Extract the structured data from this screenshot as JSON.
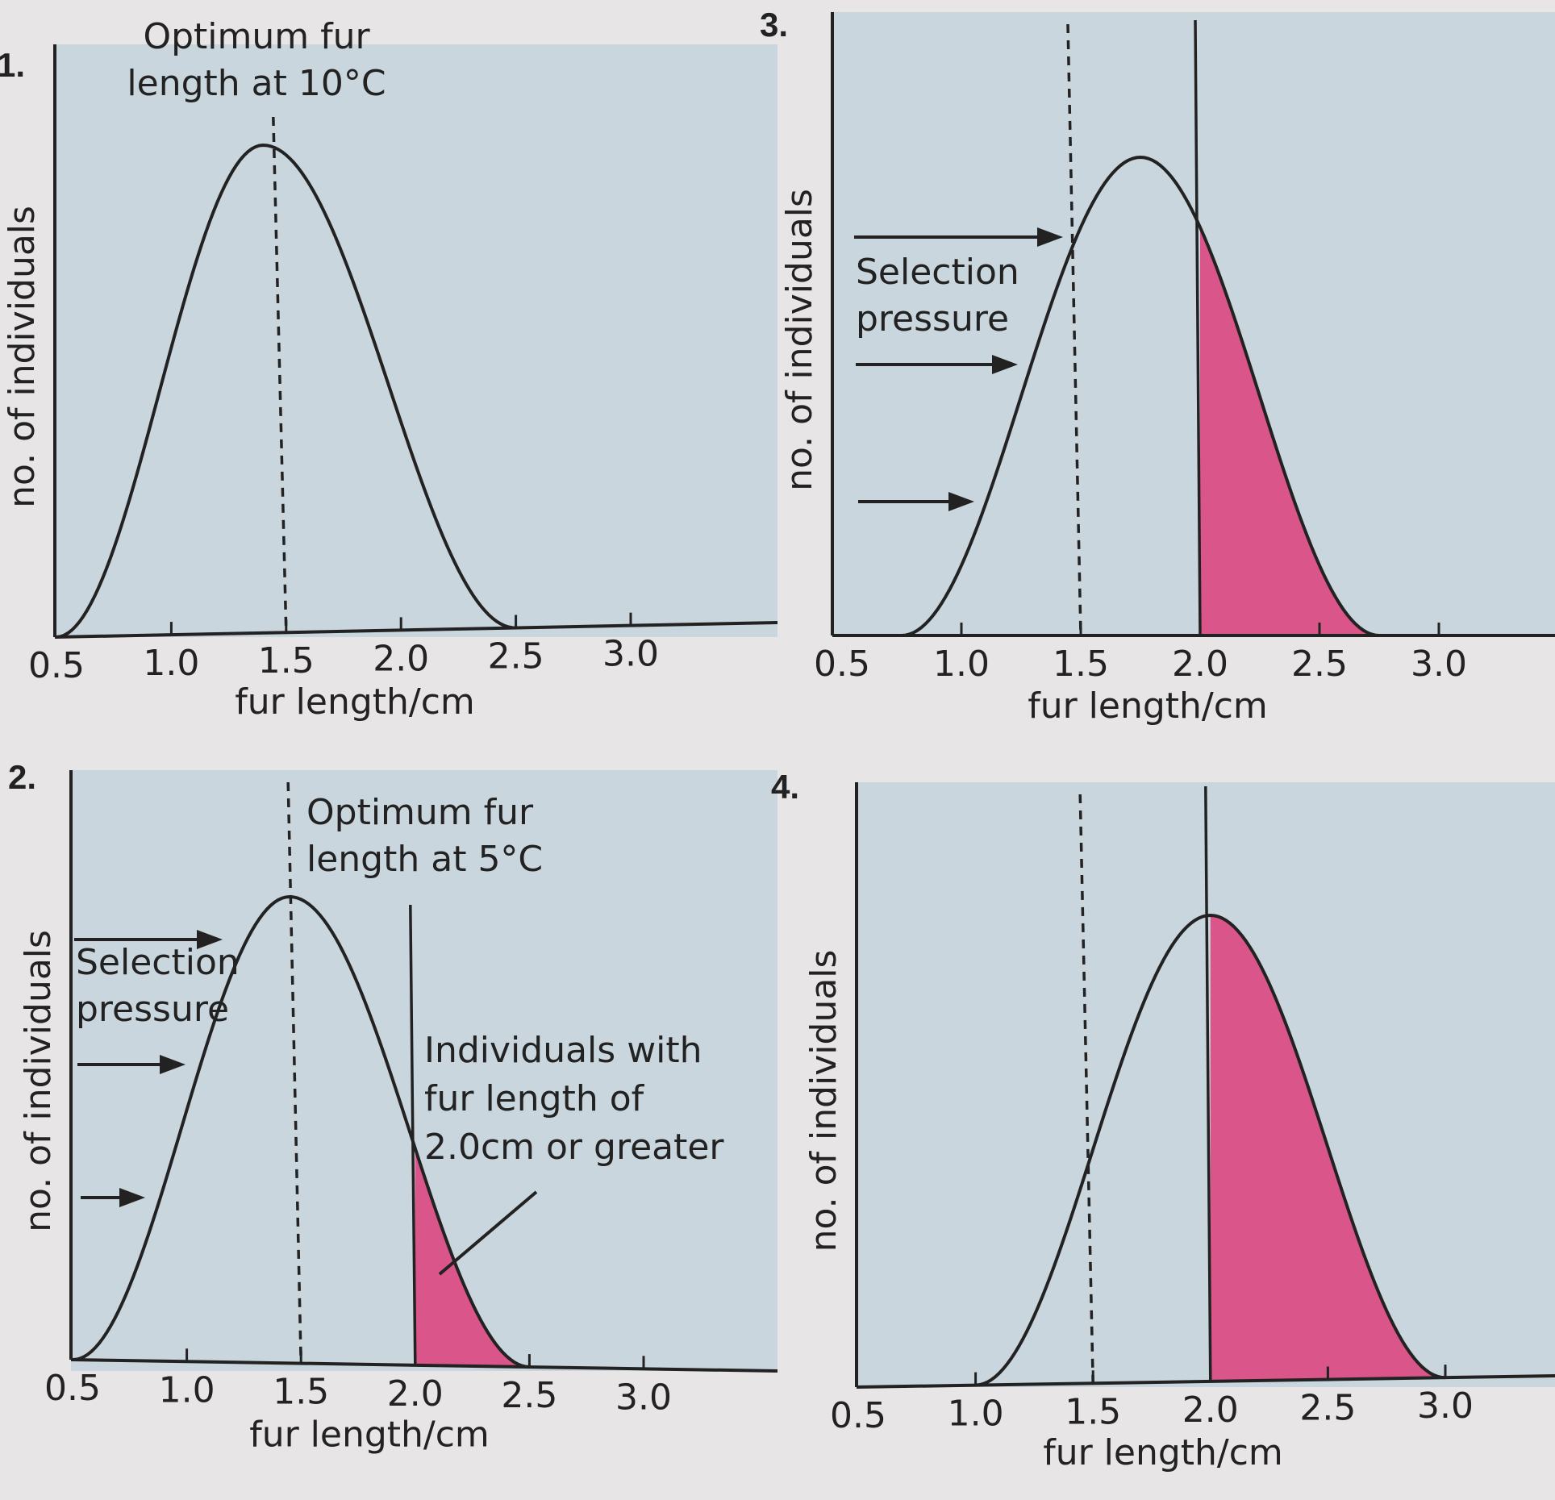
{
  "colors": {
    "page": "#e7e5e6",
    "plot_bg": "#c9d6dd",
    "highlight": "#d9558a",
    "ink": "#222222"
  },
  "chart_data": [
    {
      "type": "area",
      "number": "1.",
      "xlabel": "fur length/cm",
      "ylabel": "no. of individuals",
      "xticks": [
        "0.5",
        "1.0",
        "1.5",
        "2.0",
        "2.5",
        "3.0"
      ],
      "xlim": [
        0.5,
        3.0
      ],
      "curve": {
        "start": 0.5,
        "peak": 1.4,
        "end": 2.5
      },
      "optimum_line": 1.5,
      "threshold_line": null,
      "shaded_from": null,
      "annotations": [
        {
          "lines": [
            "Optimum fur",
            "length at 10°C"
          ]
        }
      ],
      "selection_pressure": null,
      "callout": null
    },
    {
      "type": "area",
      "number": "2.",
      "xlabel": "fur length/cm",
      "ylabel": "no. of individuals",
      "xticks": [
        "0.5",
        "1.0",
        "1.5",
        "2.0",
        "2.5",
        "3.0"
      ],
      "xlim": [
        0.5,
        3.0
      ],
      "curve": {
        "start": 0.5,
        "peak": 1.45,
        "end": 2.5
      },
      "optimum_line": 1.5,
      "threshold_line": 2.0,
      "shaded_from": 2.0,
      "annotations": [
        {
          "lines": [
            "Optimum fur",
            "length at 5°C"
          ]
        }
      ],
      "selection_pressure": {
        "lines": [
          "Selection",
          "pressure"
        ]
      },
      "callout": {
        "lines": [
          "Individuals with",
          "fur length of",
          "2.0cm or greater"
        ]
      }
    },
    {
      "type": "area",
      "number": "3.",
      "xlabel": "fur length/cm",
      "ylabel": "no. of individuals",
      "xticks": [
        "0.5",
        "1.0",
        "1.5",
        "2.0",
        "2.5",
        "3.0"
      ],
      "xlim": [
        0.5,
        3.0
      ],
      "curve": {
        "start": 0.75,
        "peak": 1.75,
        "end": 2.75
      },
      "optimum_line": 1.5,
      "threshold_line": 2.0,
      "shaded_from": 2.0,
      "annotations": [],
      "selection_pressure": {
        "lines": [
          "Selection",
          "pressure"
        ]
      },
      "callout": null
    },
    {
      "type": "area",
      "number": "4.",
      "xlabel": "fur length/cm",
      "ylabel": "no. of individuals",
      "xticks": [
        "0.5",
        "1.0",
        "1.5",
        "2.0",
        "2.5",
        "3.0"
      ],
      "xlim": [
        0.5,
        3.0
      ],
      "curve": {
        "start": 1.0,
        "peak": 2.0,
        "end": 3.0
      },
      "optimum_line": 1.5,
      "threshold_line": 2.0,
      "shaded_from": 2.0,
      "annotations": [],
      "selection_pressure": null,
      "callout": null
    }
  ]
}
